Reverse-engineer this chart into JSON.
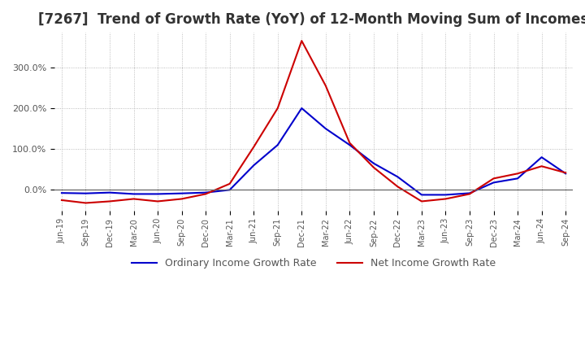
{
  "title": "[7267]  Trend of Growth Rate (YoY) of 12-Month Moving Sum of Incomes",
  "ordinary_income": {
    "label": "Ordinary Income Growth Rate",
    "color": "#0000CC",
    "dates": [
      "Jun-19",
      "Sep-19",
      "Dec-19",
      "Mar-20",
      "Jun-20",
      "Sep-20",
      "Dec-20",
      "Mar-21",
      "Jun-21",
      "Sep-21",
      "Dec-21",
      "Mar-22",
      "Jun-22",
      "Sep-22",
      "Dec-22",
      "Mar-23",
      "Jun-23",
      "Sep-23",
      "Dec-23",
      "Mar-24",
      "Jun-24",
      "Sep-24"
    ],
    "values": [
      -0.075,
      -0.085,
      -0.065,
      -0.1,
      -0.1,
      -0.085,
      -0.065,
      0.0,
      0.6,
      1.1,
      2.0,
      1.5,
      1.1,
      0.65,
      0.32,
      -0.12,
      -0.12,
      -0.08,
      0.18,
      0.28,
      0.8,
      0.4
    ]
  },
  "net_income": {
    "label": "Net Income Growth Rate",
    "color": "#CC0000",
    "dates": [
      "Jun-19",
      "Sep-19",
      "Dec-19",
      "Mar-20",
      "Jun-20",
      "Sep-20",
      "Dec-20",
      "Mar-21",
      "Jun-21",
      "Sep-21",
      "Dec-21",
      "Mar-22",
      "Jun-22",
      "Sep-22",
      "Dec-22",
      "Mar-23",
      "Jun-23",
      "Sep-23",
      "Dec-23",
      "Mar-24",
      "Jun-24",
      "Sep-24"
    ],
    "values": [
      -0.25,
      -0.32,
      -0.28,
      -0.22,
      -0.28,
      -0.22,
      -0.1,
      0.15,
      1.05,
      2.0,
      3.65,
      2.55,
      1.15,
      0.55,
      0.08,
      -0.28,
      -0.22,
      -0.1,
      0.28,
      0.4,
      0.58,
      0.42
    ]
  },
  "ylim": [
    -0.5,
    3.85
  ],
  "yticks": [
    0.0,
    1.0,
    2.0,
    3.0
  ],
  "ytick_labels": [
    "0.0%",
    "100.0%",
    "200.0%",
    "300.0%"
  ],
  "background_color": "#FFFFFF",
  "grid_color": "#AAAAAA",
  "title_fontsize": 12,
  "legend_fontsize": 9,
  "tick_fontsize": 8
}
